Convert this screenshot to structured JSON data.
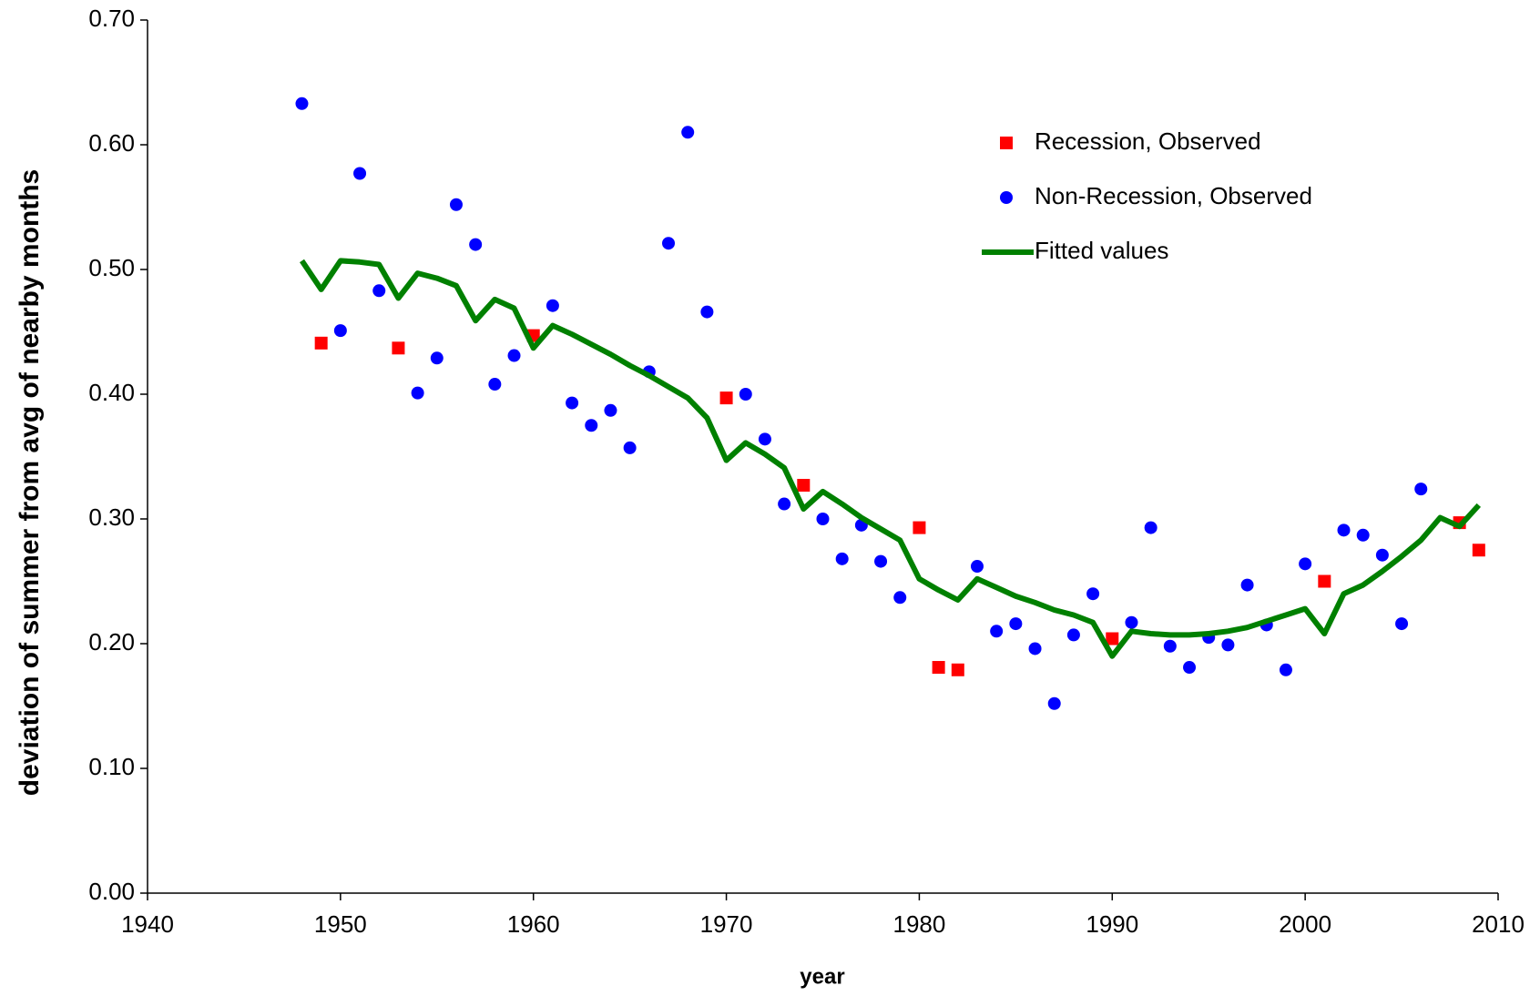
{
  "chart_data": {
    "type": "scatter",
    "x_label": "year",
    "y_label": "deviation of summer from avg of nearby months",
    "xlim": [
      1940,
      2010
    ],
    "xticks": [
      1940,
      1950,
      1960,
      1970,
      1980,
      1990,
      2000,
      2010
    ],
    "ylim": [
      0,
      0.7
    ],
    "yticks": [
      {
        "value": 0,
        "label": "0.00"
      },
      {
        "value": 0.1,
        "label": "0.10"
      },
      {
        "value": 0.2,
        "label": "0.20"
      },
      {
        "value": 0.3,
        "label": "0.30"
      },
      {
        "value": 0.4,
        "label": "0.40"
      },
      {
        "value": 0.5,
        "label": "0.50"
      },
      {
        "value": 0.6,
        "label": "0.60"
      },
      {
        "value": 0.7,
        "label": "0.70"
      }
    ],
    "grid": false,
    "legend": "upper right",
    "series": [
      {
        "name": "Recession, Observed",
        "type": "scatter",
        "marker": "square",
        "color": "#ff0000",
        "x": [
          1949,
          1953,
          1960,
          1970,
          1974,
          1980,
          1981,
          1982,
          1990,
          2001,
          2008,
          2009
        ],
        "values": [
          0.441,
          0.437,
          0.447,
          0.397,
          0.327,
          0.293,
          0.181,
          0.179,
          0.204,
          0.25,
          0.297,
          0.275
        ]
      },
      {
        "name": "Non-Recession, Observed",
        "type": "scatter",
        "marker": "circle",
        "color": "#0000ff",
        "x": [
          1948,
          1950,
          1951,
          1952,
          1954,
          1955,
          1956,
          1957,
          1958,
          1959,
          1961,
          1962,
          1963,
          1964,
          1965,
          1966,
          1967,
          1968,
          1969,
          1971,
          1972,
          1973,
          1975,
          1976,
          1977,
          1978,
          1979,
          1983,
          1984,
          1985,
          1986,
          1987,
          1988,
          1989,
          1991,
          1992,
          1993,
          1994,
          1995,
          1996,
          1997,
          1998,
          1999,
          2000,
          2002,
          2003,
          2004,
          2005,
          2006
        ],
        "values": [
          0.633,
          0.451,
          0.577,
          0.483,
          0.401,
          0.429,
          0.552,
          0.52,
          0.408,
          0.431,
          0.471,
          0.393,
          0.375,
          0.387,
          0.357,
          0.418,
          0.521,
          0.61,
          0.466,
          0.4,
          0.364,
          0.312,
          0.3,
          0.268,
          0.295,
          0.266,
          0.237,
          0.262,
          0.21,
          0.216,
          0.196,
          0.152,
          0.207,
          0.24,
          0.217,
          0.293,
          0.198,
          0.181,
          0.205,
          0.199,
          0.247,
          0.215,
          0.179,
          0.264,
          0.291,
          0.287,
          0.271,
          0.216,
          0.324
        ]
      },
      {
        "name": "Fitted values",
        "type": "line",
        "color": "#008000",
        "x": [
          1948,
          1949,
          1950,
          1951,
          1952,
          1953,
          1954,
          1955,
          1956,
          1957,
          1958,
          1959,
          1960,
          1961,
          1962,
          1963,
          1964,
          1965,
          1966,
          1967,
          1968,
          1969,
          1970,
          1971,
          1972,
          1973,
          1974,
          1975,
          1976,
          1977,
          1978,
          1979,
          1980,
          1981,
          1982,
          1983,
          1984,
          1985,
          1986,
          1987,
          1988,
          1989,
          1990,
          1991,
          1992,
          1993,
          1994,
          1995,
          1996,
          1997,
          1998,
          1999,
          2000,
          2001,
          2002,
          2003,
          2004,
          2005,
          2006,
          2007,
          2008,
          2009
        ],
        "values": [
          0.507,
          0.484,
          0.507,
          0.506,
          0.504,
          0.477,
          0.497,
          0.493,
          0.487,
          0.459,
          0.476,
          0.469,
          0.437,
          0.455,
          0.448,
          0.44,
          0.432,
          0.423,
          0.415,
          0.406,
          0.397,
          0.381,
          0.347,
          0.361,
          0.352,
          0.341,
          0.308,
          0.322,
          0.312,
          0.301,
          0.292,
          0.283,
          0.252,
          0.243,
          0.235,
          0.252,
          0.245,
          0.238,
          0.233,
          0.227,
          0.223,
          0.217,
          0.19,
          0.21,
          0.208,
          0.207,
          0.207,
          0.208,
          0.21,
          0.213,
          0.218,
          0.223,
          0.228,
          0.208,
          0.24,
          0.247,
          0.258,
          0.27,
          0.283,
          0.301,
          0.294,
          0.311
        ]
      }
    ]
  }
}
